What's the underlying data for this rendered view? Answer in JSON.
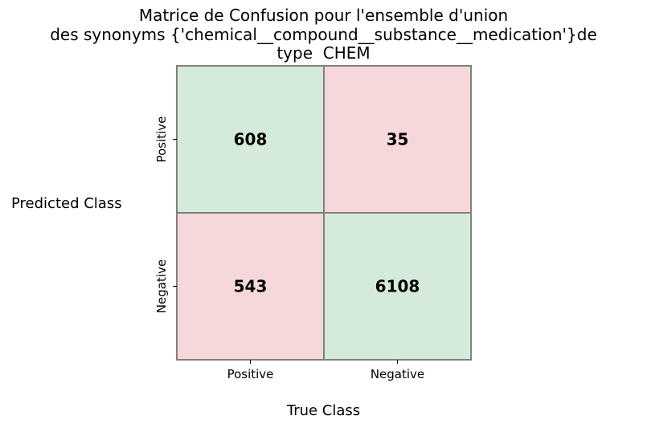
{
  "chart_data": {
    "type": "heatmap",
    "title_lines": [
      "Matrice de Confusion pour l'ensemble d'union",
      "des synonyms {'chemical__compound__substance__medication'}de",
      "type  CHEM"
    ],
    "xlabel": "True Class",
    "ylabel": "Predicted Class",
    "x_categories": [
      "Positive",
      "Negative"
    ],
    "y_categories": [
      "Positive",
      "Negative"
    ],
    "values": [
      [
        608,
        35
      ],
      [
        543,
        6108
      ]
    ],
    "colors": {
      "correct": "#d4ebda",
      "incorrect": "#f6d7da",
      "border": "#808080"
    }
  }
}
